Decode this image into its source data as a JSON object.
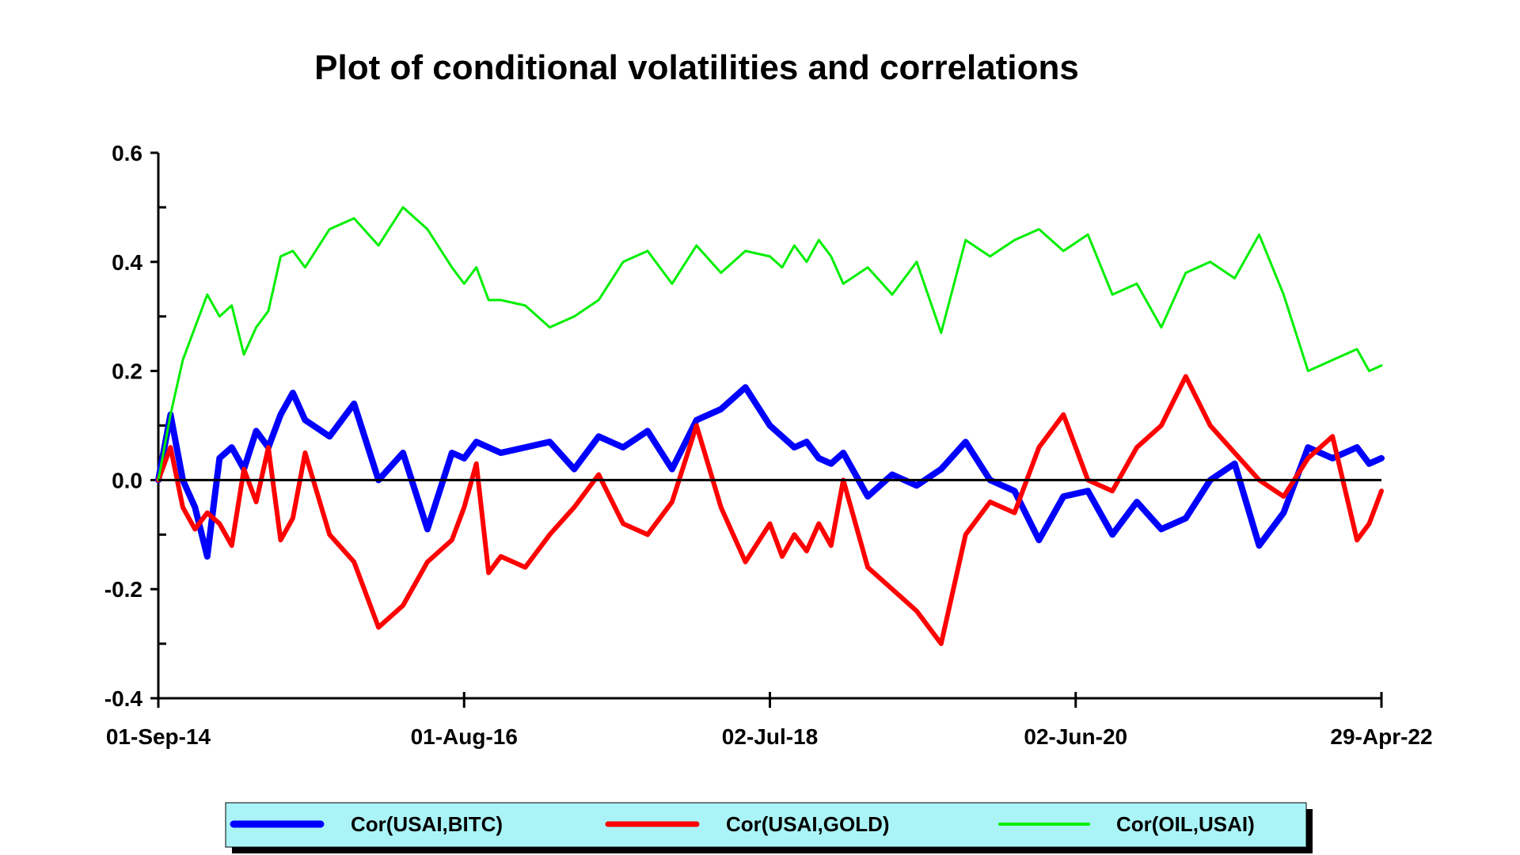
{
  "chart_data": {
    "type": "line",
    "title": "Plot of conditional volatilities and correlations",
    "xlabel": "",
    "ylabel": "",
    "ylim": [
      -0.4,
      0.6
    ],
    "yticks": [
      {
        "value": 0.6,
        "label": "0.6"
      },
      {
        "value": 0.4,
        "label": "0.4"
      },
      {
        "value": 0.2,
        "label": "0.2"
      },
      {
        "value": 0.0,
        "label": "0.0"
      },
      {
        "value": -0.2,
        "label": "-0.2"
      },
      {
        "value": -0.4,
        "label": "-0.4"
      }
    ],
    "xlim": [
      0,
      100
    ],
    "xticks": [
      {
        "value": 0,
        "label": "01-Sep-14"
      },
      {
        "value": 25,
        "label": "01-Aug-16"
      },
      {
        "value": 50,
        "label": "02-Jul-18"
      },
      {
        "value": 75,
        "label": "02-Jun-20"
      },
      {
        "value": 100,
        "label": "29-Apr-22"
      }
    ],
    "zero_line": 0.0,
    "legend_position": "bottom",
    "series": [
      {
        "name": "Cor(USAI,BITC)",
        "color": "#0000ff",
        "width": 8,
        "x": [
          0,
          1,
          2,
          3,
          4,
          5,
          6,
          7,
          8,
          9,
          10,
          11,
          12,
          14,
          16,
          18,
          20,
          22,
          24,
          25,
          26,
          27,
          28,
          30,
          32,
          34,
          36,
          38,
          40,
          42,
          44,
          46,
          48,
          50,
          51,
          52,
          53,
          54,
          55,
          56,
          58,
          60,
          62,
          64,
          66,
          68,
          70,
          72,
          74,
          76,
          78,
          80,
          82,
          84,
          86,
          88,
          90,
          92,
          94,
          96,
          98,
          99,
          100
        ],
        "y": [
          0.0,
          0.12,
          0.0,
          -0.05,
          -0.14,
          0.04,
          0.06,
          0.02,
          0.09,
          0.06,
          0.12,
          0.16,
          0.11,
          0.08,
          0.14,
          0.0,
          0.05,
          -0.09,
          0.05,
          0.04,
          0.07,
          0.06,
          0.05,
          0.06,
          0.07,
          0.02,
          0.08,
          0.06,
          0.09,
          0.02,
          0.11,
          0.13,
          0.17,
          0.1,
          0.08,
          0.06,
          0.07,
          0.04,
          0.03,
          0.05,
          -0.03,
          0.01,
          -0.01,
          0.02,
          0.07,
          0.0,
          -0.02,
          -0.11,
          -0.03,
          -0.02,
          -0.1,
          -0.04,
          -0.09,
          -0.07,
          0.0,
          0.03,
          -0.12,
          -0.06,
          0.06,
          0.04,
          0.06,
          0.03,
          0.04
        ]
      },
      {
        "name": "Cor(USAI,GOLD)",
        "color": "#ff0000",
        "width": 6,
        "x": [
          0,
          1,
          2,
          3,
          4,
          5,
          6,
          7,
          8,
          9,
          10,
          11,
          12,
          14,
          16,
          18,
          20,
          22,
          24,
          25,
          26,
          27,
          28,
          30,
          32,
          34,
          36,
          38,
          40,
          42,
          44,
          46,
          48,
          50,
          51,
          52,
          53,
          54,
          55,
          56,
          58,
          60,
          62,
          64,
          66,
          68,
          70,
          72,
          74,
          76,
          78,
          80,
          82,
          84,
          86,
          88,
          90,
          92,
          94,
          96,
          98,
          99,
          100
        ],
        "y": [
          0.0,
          0.06,
          -0.05,
          -0.09,
          -0.06,
          -0.08,
          -0.12,
          0.02,
          -0.04,
          0.06,
          -0.11,
          -0.07,
          0.05,
          -0.1,
          -0.15,
          -0.27,
          -0.23,
          -0.15,
          -0.11,
          -0.05,
          0.03,
          -0.17,
          -0.14,
          -0.16,
          -0.1,
          -0.05,
          0.01,
          -0.08,
          -0.1,
          -0.04,
          0.1,
          -0.05,
          -0.15,
          -0.08,
          -0.14,
          -0.1,
          -0.13,
          -0.08,
          -0.12,
          0.0,
          -0.16,
          -0.2,
          -0.24,
          -0.3,
          -0.1,
          -0.04,
          -0.06,
          0.06,
          0.12,
          0.0,
          -0.02,
          0.06,
          0.1,
          0.19,
          0.1,
          0.05,
          0.0,
          -0.03,
          0.04,
          0.08,
          -0.11,
          -0.08,
          -0.02
        ]
      },
      {
        "name": "Cor(OIL,USAI)",
        "color": "#00ee00",
        "width": 3,
        "x": [
          0,
          1,
          2,
          3,
          4,
          5,
          6,
          7,
          8,
          9,
          10,
          11,
          12,
          14,
          16,
          18,
          20,
          22,
          24,
          25,
          26,
          27,
          28,
          30,
          32,
          34,
          36,
          38,
          40,
          42,
          44,
          46,
          48,
          50,
          51,
          52,
          53,
          54,
          55,
          56,
          58,
          60,
          62,
          64,
          66,
          68,
          70,
          72,
          74,
          76,
          78,
          80,
          82,
          84,
          86,
          88,
          90,
          92,
          94,
          96,
          98,
          99,
          100
        ],
        "y": [
          0.0,
          0.12,
          0.22,
          0.28,
          0.34,
          0.3,
          0.32,
          0.23,
          0.28,
          0.31,
          0.41,
          0.42,
          0.39,
          0.46,
          0.48,
          0.43,
          0.5,
          0.46,
          0.39,
          0.36,
          0.39,
          0.33,
          0.33,
          0.32,
          0.28,
          0.3,
          0.33,
          0.4,
          0.42,
          0.36,
          0.43,
          0.38,
          0.42,
          0.41,
          0.39,
          0.43,
          0.4,
          0.44,
          0.41,
          0.36,
          0.39,
          0.34,
          0.4,
          0.27,
          0.44,
          0.41,
          0.44,
          0.46,
          0.42,
          0.45,
          0.34,
          0.36,
          0.28,
          0.38,
          0.4,
          0.37,
          0.45,
          0.34,
          0.2,
          0.22,
          0.24,
          0.2,
          0.21
        ]
      }
    ]
  }
}
